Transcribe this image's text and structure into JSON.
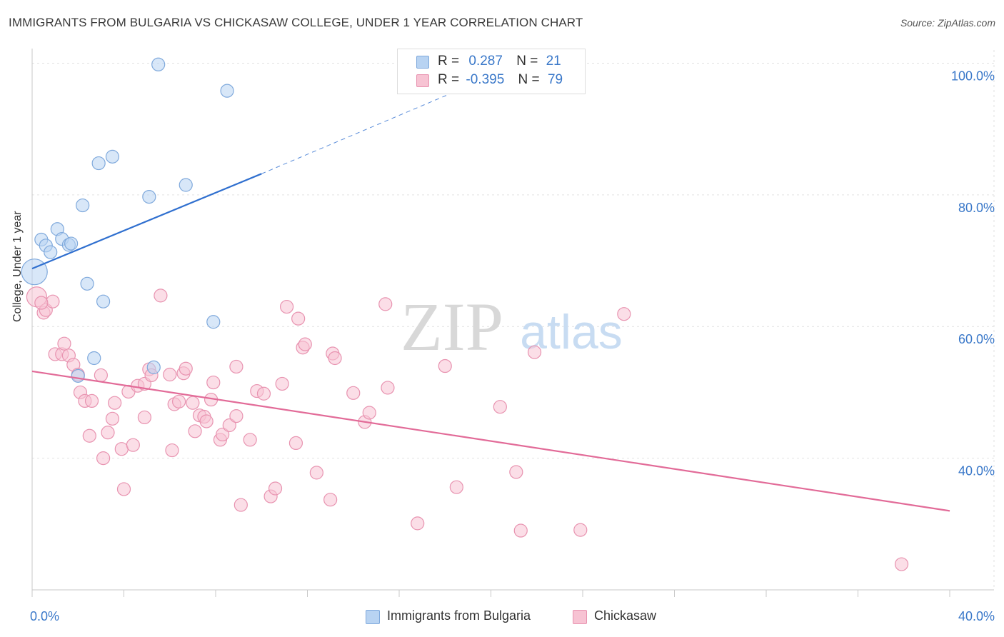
{
  "title": "IMMIGRANTS FROM BULGARIA VS CHICKASAW COLLEGE, UNDER 1 YEAR CORRELATION CHART",
  "source": "Source: ZipAtlas.com",
  "watermark": {
    "zip": "ZIP",
    "atlas": "atlas"
  },
  "legend_top": [
    {
      "r_label": "R =",
      "r_value": "0.287",
      "n_label": "N =",
      "n_value": "21"
    },
    {
      "r_label": "R =",
      "r_value": "-0.395",
      "n_label": "N =",
      "n_value": "79"
    }
  ],
  "legend_bottom": [
    "Immigrants from Bulgaria",
    "Chickasaw"
  ],
  "colors": {
    "blue_fill": "#b8d3f2",
    "blue_stroke": "#7fa9dc",
    "blue_line": "#2f6fcf",
    "pink_fill": "#f7c3d3",
    "pink_stroke": "#e893b0",
    "pink_line": "#e26b98",
    "tick_label": "#3a78c9",
    "grid": "#e2e2e2"
  },
  "chart_data": {
    "type": "scatter",
    "title": "IMMIGRANTS FROM BULGARIA VS CHICKASAW COLLEGE, UNDER 1 YEAR CORRELATION CHART",
    "xlabel": "",
    "ylabel": "College, Under 1 year",
    "xlim": [
      0,
      40
    ],
    "ylim": [
      20,
      102
    ],
    "x_tick_labels": [
      "0.0%",
      "40.0%"
    ],
    "y_ticks": [
      40,
      60,
      80,
      100
    ],
    "y_tick_labels": [
      "40.0%",
      "60.0%",
      "80.0%",
      "100.0%"
    ],
    "grid": true,
    "series": [
      {
        "name": "Immigrants from Bulgaria",
        "r": 0.287,
        "n": 21,
        "trend": {
          "x0": 0,
          "y0": 68.8,
          "x1": 10,
          "y1": 83.2,
          "dash_to_x": 19,
          "dash_to_y": 96.5
        },
        "points": [
          [
            0.1,
            68.3,
            18
          ],
          [
            0.4,
            73.2,
            9
          ],
          [
            0.6,
            72.3,
            9
          ],
          [
            0.8,
            71.3,
            9
          ],
          [
            1.1,
            74.8,
            9
          ],
          [
            1.3,
            73.3,
            9
          ],
          [
            1.6,
            72.4,
            9
          ],
          [
            1.7,
            72.6,
            9
          ],
          [
            2.2,
            78.4,
            9
          ],
          [
            2.4,
            66.5,
            9
          ],
          [
            2.7,
            55.2,
            9
          ],
          [
            2.9,
            84.8,
            9
          ],
          [
            3.1,
            63.8,
            9
          ],
          [
            3.5,
            85.8,
            9
          ],
          [
            5.1,
            79.7,
            9
          ],
          [
            5.3,
            53.8,
            9
          ],
          [
            5.5,
            99.8,
            9
          ],
          [
            6.7,
            81.5,
            9
          ],
          [
            7.9,
            60.7,
            9
          ],
          [
            8.5,
            95.8,
            9
          ],
          [
            2.0,
            52.5,
            9
          ]
        ]
      },
      {
        "name": "Chickasaw",
        "r": -0.395,
        "n": 79,
        "trend": {
          "x0": 0,
          "y0": 53.2,
          "x1": 40,
          "y1": 32.0
        },
        "points": [
          [
            0.2,
            64.5,
            14
          ],
          [
            0.5,
            62.1,
            9
          ],
          [
            0.6,
            62.5,
            9
          ],
          [
            0.9,
            63.8,
            9
          ],
          [
            1.0,
            55.8,
            9
          ],
          [
            1.3,
            55.8,
            9
          ],
          [
            1.4,
            57.4,
            9
          ],
          [
            1.6,
            55.6,
            9
          ],
          [
            1.8,
            54.2,
            9
          ],
          [
            2.0,
            52.7,
            9
          ],
          [
            2.1,
            50.0,
            9
          ],
          [
            2.3,
            48.7,
            9
          ],
          [
            2.6,
            48.7,
            9
          ],
          [
            2.5,
            43.4,
            9
          ],
          [
            3.0,
            52.6,
            9
          ],
          [
            3.1,
            40.0,
            9
          ],
          [
            3.3,
            43.9,
            9
          ],
          [
            3.5,
            46.0,
            9
          ],
          [
            3.6,
            48.4,
            9
          ],
          [
            3.9,
            41.4,
            9
          ],
          [
            4.0,
            35.3,
            9
          ],
          [
            4.2,
            50.1,
            9
          ],
          [
            4.4,
            42.0,
            9
          ],
          [
            4.6,
            51.0,
            9
          ],
          [
            4.9,
            51.3,
            9
          ],
          [
            4.9,
            46.2,
            9
          ],
          [
            5.1,
            53.5,
            9
          ],
          [
            5.2,
            52.6,
            9
          ],
          [
            5.6,
            64.7,
            9
          ],
          [
            6.0,
            52.7,
            9
          ],
          [
            6.1,
            41.2,
            9
          ],
          [
            6.2,
            48.2,
            9
          ],
          [
            6.4,
            48.6,
            9
          ],
          [
            6.6,
            52.9,
            9
          ],
          [
            6.7,
            53.6,
            9
          ],
          [
            7.0,
            48.4,
            9
          ],
          [
            7.1,
            44.1,
            9
          ],
          [
            7.3,
            46.5,
            9
          ],
          [
            7.5,
            46.3,
            9
          ],
          [
            7.6,
            45.6,
            9
          ],
          [
            7.8,
            48.9,
            9
          ],
          [
            7.9,
            51.5,
            9
          ],
          [
            8.2,
            42.8,
            9
          ],
          [
            8.3,
            43.6,
            9
          ],
          [
            8.6,
            45.0,
            9
          ],
          [
            8.9,
            46.4,
            9
          ],
          [
            8.9,
            53.9,
            9
          ],
          [
            9.1,
            32.9,
            9
          ],
          [
            9.5,
            42.8,
            9
          ],
          [
            9.8,
            50.2,
            9
          ],
          [
            10.1,
            49.8,
            9
          ],
          [
            10.4,
            34.2,
            9
          ],
          [
            10.6,
            35.4,
            9
          ],
          [
            10.9,
            51.3,
            9
          ],
          [
            11.1,
            63.0,
            9
          ],
          [
            11.5,
            42.3,
            9
          ],
          [
            11.6,
            61.2,
            9
          ],
          [
            11.8,
            56.8,
            9
          ],
          [
            11.9,
            57.3,
            9
          ],
          [
            12.4,
            37.8,
            9
          ],
          [
            13.0,
            33.7,
            9
          ],
          [
            13.1,
            55.9,
            9
          ],
          [
            13.2,
            55.2,
            9
          ],
          [
            14.0,
            49.9,
            9
          ],
          [
            14.5,
            45.5,
            9
          ],
          [
            14.7,
            46.9,
            9
          ],
          [
            15.4,
            63.4,
            9
          ],
          [
            15.5,
            50.7,
            9
          ],
          [
            16.8,
            30.1,
            9
          ],
          [
            18.0,
            54.0,
            9
          ],
          [
            18.5,
            35.6,
            9
          ],
          [
            20.4,
            47.8,
            9
          ],
          [
            21.1,
            37.9,
            9
          ],
          [
            21.3,
            29.0,
            9
          ],
          [
            21.9,
            56.1,
            9
          ],
          [
            23.9,
            29.1,
            9
          ],
          [
            25.8,
            61.9,
            9
          ],
          [
            37.9,
            23.9,
            9
          ],
          [
            0.4,
            63.6,
            9
          ]
        ]
      }
    ]
  }
}
